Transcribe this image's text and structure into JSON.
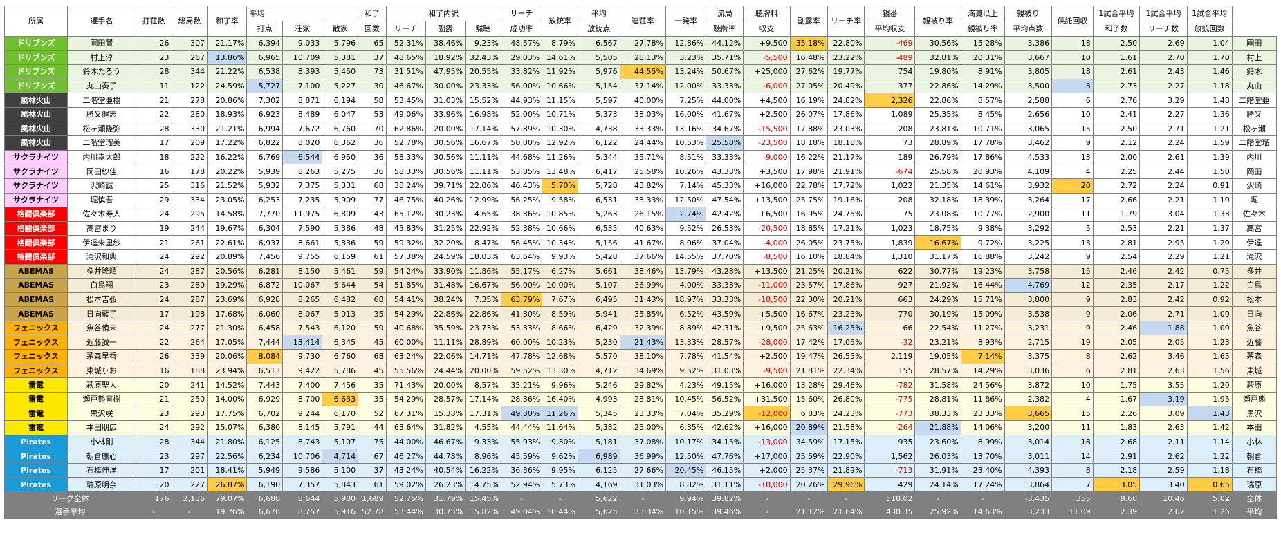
{
  "colors": {
    "team_bg": {
      "ドリブンズ": "#70c030",
      "風林火山": "#404040",
      "サクラナイツ": "#ffccff",
      "格闘倶楽部": "#ff0000",
      "ABEMAS": "#c9a44a",
      "フェニックス": "#ffb000",
      "雷電": "#ffe800",
      "Pirates": "#1a9ad8"
    },
    "team_fg": {
      "ドリブンズ": "#ffffff",
      "風林火山": "#ffffff",
      "サクラナイツ": "#000000",
      "格闘倶楽部": "#ffffff",
      "ABEMAS": "#000000",
      "フェニックス": "#000000",
      "雷電": "#000000",
      "Pirates": "#ffffff"
    },
    "row_bg": {
      "ドリブンズ": "#ebf5e1",
      "風林火山": "#ffffff",
      "サクラナイツ": "#ffffff",
      "格闘倶楽部": "#ffffff",
      "ABEMAS": "#f5ecd6",
      "フェニックス": "#fff2dc",
      "雷電": "#fffde0",
      "Pirates": "#ddeffa"
    },
    "hl_orange": "#ffcc44",
    "hl_blue": "#c5d9f1",
    "negative_text": "#e00000",
    "footer_bg": "#808080"
  },
  "columns": [
    "team",
    "name",
    "games",
    "hands",
    "win_rate",
    "avg_pts",
    "avg_pts_dealer",
    "avg_pts_nondealer",
    "win_count",
    "riichi_share",
    "furo_share",
    "dama_share",
    "riichi_success",
    "deal_in_rate",
    "avg_deal_in",
    "dealer_renchan",
    "ippatsu",
    "ryukyoku_tenpai",
    "tenpai_balance",
    "furo_rate",
    "riichi_rate",
    "dealer_net",
    "dealer_tsumo_hit",
    "mangan_tsumo_hit",
    "avg_tsumo_loss",
    "kyotaku",
    "win_per_game",
    "riichi_per_game",
    "dealin_per_game",
    "short"
  ],
  "header": {
    "team": "所属",
    "name": "選手名",
    "games": "打荘数",
    "hands": "総局数",
    "win_rate": "和了率",
    "avg_pts_group": "平均",
    "avg_pts": "打点",
    "avg_pts_dealer": "荘家",
    "avg_pts_nondealer": "散家",
    "win_count_1": "和了",
    "win_count_2": "回数",
    "breakdown_group": "和了内訳",
    "riichi_share": "リーチ",
    "furo_share": "副露",
    "dama_share": "黙聴",
    "riichi_success_1": "リーチ",
    "riichi_success_2": "成功率",
    "deal_in_rate": "放銃率",
    "avg_deal_in_1": "平均",
    "avg_deal_in_2": "放銃点",
    "dealer_renchan": "連荘率",
    "ippatsu": "一発率",
    "ryukyoku_tenpai_1": "流局",
    "ryukyoku_tenpai_2": "聴牌率",
    "tenpai_balance_1": "聴牌料",
    "tenpai_balance_2": "収支",
    "furo_rate": "副露率",
    "riichi_rate": "リーチ率",
    "dealer_net_1": "親番",
    "dealer_net_2": "平均収支",
    "dealer_tsumo_hit": "親被り率",
    "mangan_tsumo_hit_1": "満貫以上",
    "mangan_tsumo_hit_2": "親被り率",
    "avg_tsumo_loss_1": "親被り",
    "avg_tsumo_loss_2": "平均点数",
    "kyotaku": "供託回収",
    "win_per_game_1": "1試合平均",
    "win_per_game_2": "和了数",
    "riichi_per_game_1": "1試合平均",
    "riichi_per_game_2": "リーチ数",
    "dealin_per_game_1": "1試合平均",
    "dealin_per_game_2": "放銃回数"
  },
  "players": [
    [
      "ドリブンズ",
      "園田賢",
      "26",
      "307",
      "21.17%",
      "6,394",
      "9,033",
      "5,796",
      "65",
      "52.31%",
      "38.46%",
      "9.23%",
      "48.57%",
      "8.79%",
      "6,567",
      "27.78%",
      "12.86%",
      "44.12%",
      "+9,500",
      "35.18%",
      "22.80%",
      "-469",
      "30.56%",
      "15.28%",
      "3,386",
      "18",
      "2.50",
      "2.69",
      "1.04",
      "園田"
    ],
    [
      "ドリブンズ",
      "村上淳",
      "23",
      "267",
      "13.86%",
      "6,965",
      "10,709",
      "5,381",
      "37",
      "48.65%",
      "18.92%",
      "32.43%",
      "29.03%",
      "14.61%",
      "5,505",
      "28.13%",
      "3.23%",
      "35.71%",
      "-5,500",
      "16.48%",
      "23.22%",
      "-489",
      "32.81%",
      "20.31%",
      "3,667",
      "10",
      "1.61",
      "2.70",
      "1.70",
      "村上"
    ],
    [
      "ドリブンズ",
      "鈴木たろう",
      "28",
      "344",
      "21.22%",
      "6,538",
      "8,393",
      "5,450",
      "73",
      "31.51%",
      "47.95%",
      "20.55%",
      "33.82%",
      "11.92%",
      "5,976",
      "44.55%",
      "13.24%",
      "50.67%",
      "+25,000",
      "27.62%",
      "19.77%",
      "754",
      "19.80%",
      "8.91%",
      "3,805",
      "18",
      "2.61",
      "2.43",
      "1.46",
      "鈴木"
    ],
    [
      "ドリブンズ",
      "丸山奏子",
      "11",
      "122",
      "24.59%",
      "5,727",
      "7,100",
      "5,227",
      "30",
      "46.67%",
      "30.00%",
      "23.33%",
      "56.00%",
      "10.66%",
      "5,154",
      "37.14%",
      "12.00%",
      "33.33%",
      "-6,000",
      "27.05%",
      "20.49%",
      "377",
      "22.86%",
      "14.29%",
      "3,500",
      "3",
      "2.73",
      "2.27",
      "1.18",
      "丸山"
    ],
    [
      "風林火山",
      "二階堂亜樹",
      "21",
      "278",
      "20.86%",
      "7,302",
      "8,871",
      "6,194",
      "58",
      "53.45%",
      "31.03%",
      "15.52%",
      "44.93%",
      "11.15%",
      "5,597",
      "40.00%",
      "7.25%",
      "44.00%",
      "+4,500",
      "16.19%",
      "24.82%",
      "2,326",
      "22.86%",
      "8.57%",
      "2,588",
      "6",
      "2.76",
      "3.29",
      "1.48",
      "二階堂亜"
    ],
    [
      "風林火山",
      "勝又健志",
      "22",
      "280",
      "18.93%",
      "6,923",
      "8,489",
      "6,047",
      "53",
      "49.06%",
      "33.96%",
      "16.98%",
      "52.00%",
      "10.71%",
      "5,373",
      "38.03%",
      "16.00%",
      "41.67%",
      "+2,500",
      "26.07%",
      "17.86%",
      "1,089",
      "25.35%",
      "8.45%",
      "2,656",
      "10",
      "2.41",
      "2.27",
      "1.36",
      "勝又"
    ],
    [
      "風林火山",
      "松ヶ瀬隆弥",
      "28",
      "330",
      "21.21%",
      "6,994",
      "7,672",
      "6,760",
      "70",
      "62.86%",
      "20.00%",
      "17.14%",
      "57.89%",
      "10.30%",
      "4,738",
      "33.33%",
      "13.16%",
      "34.67%",
      "-15,500",
      "17.88%",
      "23.03%",
      "208",
      "23.81%",
      "10.71%",
      "3,065",
      "15",
      "2.50",
      "2.71",
      "1.21",
      "松ヶ瀬"
    ],
    [
      "風林火山",
      "二階堂瑠美",
      "17",
      "209",
      "17.22%",
      "6,822",
      "8,020",
      "6,362",
      "36",
      "52.78%",
      "30.56%",
      "16.67%",
      "50.00%",
      "12.92%",
      "6,122",
      "24.44%",
      "10.53%",
      "25.58%",
      "-23,500",
      "18.18%",
      "18.18%",
      "73",
      "28.89%",
      "17.78%",
      "3,462",
      "9",
      "2.12",
      "2.24",
      "1.59",
      "二階堂瑠"
    ],
    [
      "サクラナイツ",
      "内川幸太郎",
      "18",
      "222",
      "16.22%",
      "6,769",
      "6,544",
      "6,950",
      "36",
      "58.33%",
      "30.56%",
      "11.11%",
      "44.68%",
      "11.26%",
      "5,344",
      "35.71%",
      "8.51%",
      "33.33%",
      "-9,000",
      "16.22%",
      "21.17%",
      "189",
      "26.79%",
      "17.86%",
      "4,533",
      "13",
      "2.00",
      "2.61",
      "1.39",
      "内川"
    ],
    [
      "サクラナイツ",
      "岡田紗佳",
      "16",
      "178",
      "20.22%",
      "5,939",
      "8,263",
      "5,275",
      "36",
      "58.33%",
      "30.56%",
      "11.11%",
      "53.85%",
      "13.48%",
      "6,417",
      "25.58%",
      "10.26%",
      "43.33%",
      "+3,500",
      "17.98%",
      "21.91%",
      "-674",
      "25.58%",
      "20.93%",
      "4,109",
      "4",
      "2.25",
      "2.44",
      "1.50",
      "岡田"
    ],
    [
      "サクラナイツ",
      "沢崎誠",
      "25",
      "316",
      "21.52%",
      "5,932",
      "7,375",
      "5,331",
      "68",
      "38.24%",
      "39.71%",
      "22.06%",
      "46.43%",
      "5.70%",
      "5,728",
      "43.82%",
      "7.14%",
      "45.33%",
      "+16,000",
      "22.78%",
      "17.72%",
      "1,022",
      "21.35%",
      "14.61%",
      "3,932",
      "20",
      "2.72",
      "2.24",
      "0.91",
      "沢崎"
    ],
    [
      "サクラナイツ",
      "堀慎吾",
      "29",
      "334",
      "23.05%",
      "6,253",
      "7,235",
      "5,909",
      "77",
      "46.75%",
      "40.26%",
      "12.99%",
      "56.25%",
      "9.58%",
      "6,531",
      "33.33%",
      "12.50%",
      "47.54%",
      "+13,500",
      "25.75%",
      "19.16%",
      "208",
      "32.18%",
      "18.39%",
      "3,264",
      "17",
      "2.66",
      "2.21",
      "1.10",
      "堀"
    ],
    [
      "格闘倶楽部",
      "佐々木寿人",
      "24",
      "295",
      "14.58%",
      "7,770",
      "11,975",
      "6,809",
      "43",
      "65.12%",
      "30.23%",
      "4.65%",
      "38.36%",
      "10.85%",
      "5,263",
      "26.15%",
      "2.74%",
      "42.42%",
      "+6,500",
      "16.95%",
      "24.75%",
      "75",
      "23.08%",
      "10.77%",
      "2,900",
      "11",
      "1.79",
      "3.04",
      "1.33",
      "佐々木"
    ],
    [
      "格闘倶楽部",
      "高宮まり",
      "19",
      "244",
      "19.67%",
      "6,304",
      "7,590",
      "5,386",
      "48",
      "45.83%",
      "31.25%",
      "22.92%",
      "52.38%",
      "10.66%",
      "6,535",
      "40.63%",
      "9.52%",
      "26.53%",
      "-20,500",
      "18.85%",
      "17.21%",
      "1,023",
      "18.75%",
      "9.38%",
      "3,292",
      "5",
      "2.53",
      "2.21",
      "1.37",
      "高宮"
    ],
    [
      "格闘倶楽部",
      "伊達朱里紗",
      "21",
      "261",
      "22.61%",
      "6,937",
      "8,661",
      "5,836",
      "59",
      "59.32%",
      "32.20%",
      "8.47%",
      "56.45%",
      "10.34%",
      "5,156",
      "41.67%",
      "8.06%",
      "37.04%",
      "-4,000",
      "26.05%",
      "23.75%",
      "1,839",
      "16.67%",
      "9.72%",
      "3,225",
      "13",
      "2.81",
      "2.95",
      "1.29",
      "伊達"
    ],
    [
      "格闘倶楽部",
      "滝沢和典",
      "24",
      "292",
      "20.89%",
      "7,456",
      "9,755",
      "6,159",
      "61",
      "57.38%",
      "24.59%",
      "18.03%",
      "63.64%",
      "9.93%",
      "5,428",
      "37.66%",
      "14.55%",
      "37.70%",
      "-8,500",
      "16.10%",
      "18.84%",
      "1,310",
      "31.17%",
      "16.88%",
      "3,242",
      "9",
      "2.54",
      "2.29",
      "1.21",
      "滝沢"
    ],
    [
      "ABEMAS",
      "多井隆晴",
      "24",
      "287",
      "20.56%",
      "6,281",
      "8,150",
      "5,461",
      "59",
      "54.24%",
      "33.90%",
      "11.86%",
      "55.17%",
      "6.27%",
      "5,661",
      "38.46%",
      "13.79%",
      "43.28%",
      "+13,500",
      "21.25%",
      "20.21%",
      "622",
      "30.77%",
      "19.23%",
      "3,758",
      "15",
      "2.46",
      "2.42",
      "0.75",
      "多井"
    ],
    [
      "ABEMAS",
      "白鳥翔",
      "23",
      "280",
      "19.29%",
      "6,872",
      "10,067",
      "5,644",
      "54",
      "51.85%",
      "31.48%",
      "16.67%",
      "56.00%",
      "10.00%",
      "5,107",
      "36.99%",
      "4.00%",
      "33.33%",
      "-11,000",
      "23.57%",
      "17.86%",
      "927",
      "21.92%",
      "16.44%",
      "4,769",
      "12",
      "2.35",
      "2.17",
      "1.22",
      "白鳥"
    ],
    [
      "ABEMAS",
      "松本吉弘",
      "24",
      "287",
      "23.69%",
      "6,928",
      "8,265",
      "6,482",
      "68",
      "54.41%",
      "38.24%",
      "7.35%",
      "63.79%",
      "7.67%",
      "6,495",
      "31.43%",
      "18.97%",
      "33.33%",
      "-18,500",
      "22.30%",
      "20.21%",
      "663",
      "24.29%",
      "15.71%",
      "3,800",
      "9",
      "2.83",
      "2.42",
      "0.92",
      "松本"
    ],
    [
      "ABEMAS",
      "日向藍子",
      "17",
      "198",
      "17.68%",
      "6,060",
      "8,067",
      "5,013",
      "35",
      "54.29%",
      "22.86%",
      "22.86%",
      "41.30%",
      "8.59%",
      "5,941",
      "35.85%",
      "6.52%",
      "43.59%",
      "+5,500",
      "16.67%",
      "23.23%",
      "770",
      "30.19%",
      "15.09%",
      "3,538",
      "9",
      "2.06",
      "2.71",
      "1.00",
      "日向"
    ],
    [
      "フェニックス",
      "魚谷侑未",
      "24",
      "277",
      "21.30%",
      "6,458",
      "7,543",
      "6,120",
      "59",
      "40.68%",
      "35.59%",
      "23.73%",
      "53.33%",
      "8.66%",
      "6,429",
      "32.39%",
      "8.89%",
      "42.31%",
      "+9,500",
      "25.63%",
      "16.25%",
      "66",
      "22.54%",
      "11.27%",
      "3,231",
      "9",
      "2.46",
      "1.88",
      "1.00",
      "魚谷"
    ],
    [
      "フェニックス",
      "近藤誠一",
      "22",
      "264",
      "17.05%",
      "7,444",
      "13,414",
      "6,345",
      "45",
      "60.00%",
      "11.11%",
      "28.89%",
      "60.00%",
      "10.23%",
      "5,230",
      "21.43%",
      "13.33%",
      "28.57%",
      "-28,000",
      "17.42%",
      "17.05%",
      "-32",
      "23.21%",
      "8.93%",
      "2,715",
      "19",
      "2.05",
      "2.05",
      "1.23",
      "近藤"
    ],
    [
      "フェニックス",
      "茅森早香",
      "26",
      "339",
      "20.06%",
      "8,084",
      "9,730",
      "6,760",
      "68",
      "63.24%",
      "22.06%",
      "14.71%",
      "47.78%",
      "12.68%",
      "5,570",
      "38.10%",
      "7.78%",
      "41.54%",
      "+2,500",
      "19.47%",
      "26.55%",
      "2,119",
      "19.05%",
      "7.14%",
      "3,375",
      "8",
      "2.62",
      "3.46",
      "1.65",
      "茅森"
    ],
    [
      "フェニックス",
      "東城りお",
      "16",
      "188",
      "23.94%",
      "6,513",
      "9,422",
      "5,786",
      "45",
      "55.56%",
      "24.44%",
      "20.00%",
      "59.52%",
      "13.30%",
      "4,712",
      "34.69%",
      "9.52%",
      "31.03%",
      "-9,500",
      "21.81%",
      "22.34%",
      "155",
      "28.57%",
      "14.29%",
      "3,036",
      "6",
      "2.81",
      "2.63",
      "1.56",
      "東城"
    ],
    [
      "雷電",
      "萩原聖人",
      "20",
      "241",
      "14.52%",
      "7,443",
      "7,400",
      "7,456",
      "35",
      "71.43%",
      "20.00%",
      "8.57%",
      "35.21%",
      "9.96%",
      "5,246",
      "29.82%",
      "4.23%",
      "49.15%",
      "+16,000",
      "13.28%",
      "29.46%",
      "-782",
      "31.58%",
      "24.56%",
      "3,872",
      "10",
      "1.75",
      "3.55",
      "1.20",
      "萩原"
    ],
    [
      "雷電",
      "瀬戸熊直樹",
      "21",
      "250",
      "14.00%",
      "6,929",
      "8,700",
      "6,633",
      "35",
      "54.29%",
      "28.57%",
      "17.14%",
      "28.36%",
      "16.40%",
      "4,993",
      "28.81%",
      "10.45%",
      "56.52%",
      "+31,500",
      "15.60%",
      "26.80%",
      "-775",
      "28.81%",
      "11.86%",
      "2,382",
      "4",
      "1.67",
      "3.19",
      "1.95",
      "瀬戸熊"
    ],
    [
      "雷電",
      "黒沢咲",
      "23",
      "293",
      "17.75%",
      "6,702",
      "9,244",
      "6,170",
      "52",
      "67.31%",
      "15.38%",
      "17.31%",
      "49.30%",
      "11.26%",
      "5,345",
      "23.33%",
      "7.04%",
      "35.29%",
      "-12,000",
      "6.83%",
      "24.23%",
      "-773",
      "38.33%",
      "23.33%",
      "3,665",
      "15",
      "2.26",
      "3.09",
      "1.43",
      "黒沢"
    ],
    [
      "雷電",
      "本田朋広",
      "24",
      "292",
      "15.07%",
      "6,380",
      "8,145",
      "5,791",
      "44",
      "63.64%",
      "31.82%",
      "4.55%",
      "44.44%",
      "11.64%",
      "5,382",
      "25.00%",
      "6.35%",
      "42.62%",
      "+16,000",
      "20.89%",
      "21.58%",
      "-264",
      "21.88%",
      "14.06%",
      "3,200",
      "11",
      "1.83",
      "2.63",
      "1.42",
      "本田"
    ],
    [
      "Pirates",
      "小林剛",
      "28",
      "344",
      "21.80%",
      "6,125",
      "8,743",
      "5,107",
      "75",
      "44.00%",
      "46.67%",
      "9.33%",
      "55.93%",
      "9.30%",
      "5,181",
      "37.08%",
      "10.17%",
      "34.15%",
      "-13,000",
      "34.59%",
      "17.15%",
      "935",
      "23.60%",
      "8.99%",
      "3,014",
      "18",
      "2.68",
      "2.11",
      "1.14",
      "小林"
    ],
    [
      "Pirates",
      "朝倉康心",
      "23",
      "297",
      "22.56%",
      "6,234",
      "10,706",
      "4,714",
      "67",
      "46.27%",
      "44.78%",
      "8.96%",
      "45.59%",
      "9.62%",
      "6,989",
      "36.99%",
      "12.50%",
      "47.76%",
      "+17,000",
      "25.59%",
      "22.90%",
      "1,562",
      "26.03%",
      "13.70%",
      "3,011",
      "14",
      "2.91",
      "2.62",
      "1.22",
      "朝倉"
    ],
    [
      "Pirates",
      "石橋伸洋",
      "17",
      "201",
      "18.41%",
      "5,949",
      "9,586",
      "5,100",
      "37",
      "43.24%",
      "40.54%",
      "16.22%",
      "36.36%",
      "9.95%",
      "6,125",
      "27.66%",
      "20.45%",
      "46.15%",
      "+2,000",
      "25.37%",
      "21.89%",
      "-713",
      "31.91%",
      "23.40%",
      "4,393",
      "8",
      "2.18",
      "2.59",
      "1.18",
      "石橋"
    ],
    [
      "Pirates",
      "瑞原明奈",
      "20",
      "227",
      "26.87%",
      "6,190",
      "7,357",
      "5,843",
      "61",
      "59.02%",
      "26.23%",
      "14.75%",
      "52.94%",
      "5.73%",
      "4,169",
      "31.03%",
      "8.82%",
      "31.11%",
      "-10,000",
      "20.26%",
      "29.96%",
      "429",
      "24.14%",
      "17.24%",
      "3,864",
      "7",
      "3.05",
      "3.40",
      "0.65",
      "瑞原"
    ]
  ],
  "highlights": {
    "orange": [
      [
        0,
        19
      ],
      [
        2,
        15
      ],
      [
        4,
        21
      ],
      [
        10,
        13
      ],
      [
        10,
        25
      ],
      [
        14,
        22
      ],
      [
        18,
        12
      ],
      [
        22,
        5
      ],
      [
        22,
        23
      ],
      [
        25,
        7
      ],
      [
        26,
        18
      ],
      [
        26,
        24
      ],
      [
        31,
        4
      ],
      [
        31,
        20
      ],
      [
        31,
        26
      ],
      [
        31,
        28
      ]
    ],
    "blue": [
      [
        1,
        4
      ],
      [
        3,
        5
      ],
      [
        3,
        25
      ],
      [
        7,
        17
      ],
      [
        8,
        6
      ],
      [
        12,
        16
      ],
      [
        17,
        24
      ],
      [
        20,
        20
      ],
      [
        20,
        27
      ],
      [
        21,
        6
      ],
      [
        21,
        15
      ],
      [
        25,
        27
      ],
      [
        26,
        12
      ],
      [
        26,
        13
      ],
      [
        26,
        28
      ],
      [
        27,
        19
      ],
      [
        27,
        22
      ],
      [
        29,
        7
      ],
      [
        29,
        14
      ],
      [
        30,
        16
      ]
    ]
  },
  "footer": [
    [
      "リーグ全体",
      "",
      "176",
      "2,136",
      "79.07%",
      "6,680",
      "8,644",
      "5,900",
      "1,689",
      "52.75%",
      "31.79%",
      "15.45%",
      "-",
      "-",
      "5,622",
      "-",
      "9.94%",
      "39.82%",
      "-",
      "-",
      "-",
      "518.02",
      "-",
      "-",
      "-3,435",
      "355",
      "9.60",
      "10.46",
      "5.02",
      "全体"
    ],
    [
      "選手平均",
      "",
      "-",
      "-",
      "19.76%",
      "6,676",
      "8,757",
      "5,916",
      "52.78",
      "53.44%",
      "30.75%",
      "15.82%",
      "49.04%",
      "10.44%",
      "5,625",
      "33.34%",
      "10.15%",
      "39.46%",
      "-",
      "21.12%",
      "21.64%",
      "430.35",
      "25.92%",
      "14.63%",
      "3,233",
      "11.09",
      "2.39",
      "2.62",
      "1.26",
      "平均"
    ]
  ]
}
